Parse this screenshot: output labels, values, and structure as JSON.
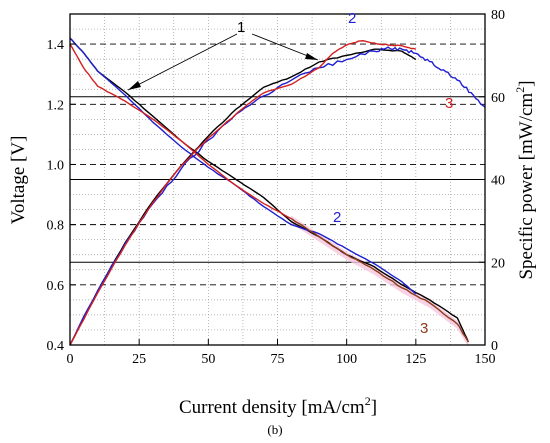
{
  "chart_data": {
    "type": "line",
    "xlabel": "Current density [mA/cm",
    "xlabel_sup": "2",
    "xlabel_tail": "]",
    "ylabel_left": "Voltage [V]",
    "ylabel_right": "Specific power [mW/cm",
    "ylabel_right_sup": "2",
    "ylabel_right_tail": "]",
    "caption": "(b)",
    "xlim": [
      0,
      150
    ],
    "ylim_left": [
      0.4,
      1.5
    ],
    "ylim_right": [
      0,
      80
    ],
    "x_ticks": [
      "0",
      "25",
      "50",
      "75",
      "100",
      "125",
      "150"
    ],
    "y_left_ticks": [
      "0.4",
      "0.6",
      "0.8",
      "1.0",
      "1.2",
      "1.4"
    ],
    "y_right_ticks": [
      "0",
      "20",
      "40",
      "60",
      "80"
    ],
    "grid": true,
    "series": [
      {
        "label": "1",
        "color": "#000000",
        "voltage": [
          [
            0,
            1.42
          ],
          [
            5,
            1.37
          ],
          [
            10,
            1.31
          ],
          [
            20,
            1.24
          ],
          [
            30,
            1.16
          ],
          [
            40,
            1.08
          ],
          [
            50,
            1.01
          ],
          [
            60,
            0.95
          ],
          [
            70,
            0.89
          ],
          [
            80,
            0.81
          ],
          [
            90,
            0.76
          ],
          [
            100,
            0.7
          ],
          [
            110,
            0.66
          ],
          [
            120,
            0.6
          ],
          [
            130,
            0.55
          ],
          [
            140,
            0.49
          ],
          [
            144,
            0.41
          ]
        ],
        "power": [
          [
            0,
            0
          ],
          [
            10,
            13.1
          ],
          [
            20,
            24.8
          ],
          [
            30,
            34.8
          ],
          [
            40,
            43.2
          ],
          [
            50,
            50.5
          ],
          [
            60,
            57.0
          ],
          [
            70,
            62.3
          ],
          [
            80,
            64.8
          ],
          [
            90,
            68.4
          ],
          [
            100,
            70.0
          ],
          [
            110,
            71.5
          ],
          [
            120,
            71.0
          ],
          [
            125,
            69.0
          ]
        ]
      },
      {
        "label": "2",
        "color": "#1f1fd0",
        "voltage": [
          [
            0,
            1.42
          ],
          [
            5,
            1.37
          ],
          [
            10,
            1.31
          ],
          [
            20,
            1.23
          ],
          [
            30,
            1.14
          ],
          [
            40,
            1.06
          ],
          [
            50,
            0.99
          ],
          [
            60,
            0.93
          ],
          [
            70,
            0.86
          ],
          [
            80,
            0.8
          ],
          [
            90,
            0.77
          ],
          [
            100,
            0.72
          ],
          [
            110,
            0.67
          ],
          [
            120,
            0.61
          ],
          [
            125,
            0.57
          ]
        ],
        "power": [
          [
            0,
            0
          ],
          [
            10,
            13.1
          ],
          [
            20,
            24.6
          ],
          [
            30,
            34.2
          ],
          [
            40,
            42.4
          ],
          [
            50,
            49.5
          ],
          [
            60,
            55.8
          ],
          [
            70,
            60.2
          ],
          [
            80,
            64.0
          ],
          [
            90,
            67.0
          ],
          [
            100,
            69.0
          ],
          [
            110,
            71.0
          ],
          [
            115,
            72.0
          ],
          [
            120,
            71.5
          ],
          [
            125,
            70.5
          ],
          [
            130,
            68.5
          ],
          [
            135,
            66.5
          ],
          [
            140,
            64.0
          ],
          [
            145,
            61.0
          ],
          [
            150,
            57.5
          ]
        ]
      },
      {
        "label": "3",
        "color": "#d42020",
        "voltage": [
          [
            0,
            1.4
          ],
          [
            5,
            1.32
          ],
          [
            10,
            1.26
          ],
          [
            20,
            1.21
          ],
          [
            30,
            1.15
          ],
          [
            40,
            1.08
          ],
          [
            50,
            1.0
          ],
          [
            60,
            0.93
          ],
          [
            70,
            0.87
          ],
          [
            80,
            0.82
          ],
          [
            90,
            0.76
          ],
          [
            100,
            0.7
          ],
          [
            110,
            0.65
          ],
          [
            120,
            0.59
          ],
          [
            130,
            0.54
          ],
          [
            140,
            0.47
          ],
          [
            144,
            0.41
          ]
        ],
        "power": [
          [
            0,
            0
          ],
          [
            10,
            12.6
          ],
          [
            20,
            24.2
          ],
          [
            30,
            34.5
          ],
          [
            40,
            43.2
          ],
          [
            50,
            50.0
          ],
          [
            60,
            55.8
          ],
          [
            65,
            58.5
          ],
          [
            70,
            60.9
          ],
          [
            80,
            63.0
          ],
          [
            90,
            67.0
          ],
          [
            95,
            70.5
          ],
          [
            100,
            72.5
          ],
          [
            105,
            73.5
          ],
          [
            110,
            73.0
          ],
          [
            115,
            72.5
          ],
          [
            120,
            72.3
          ],
          [
            125,
            71.5
          ]
        ]
      }
    ],
    "annotations": {
      "label1": "1",
      "label2_power": "2",
      "label2_voltage": "2",
      "label3_power": "3",
      "label3_voltage": "3",
      "color3_voltage": "#8b3a1a",
      "band3_color": "#f5c6dd"
    }
  }
}
